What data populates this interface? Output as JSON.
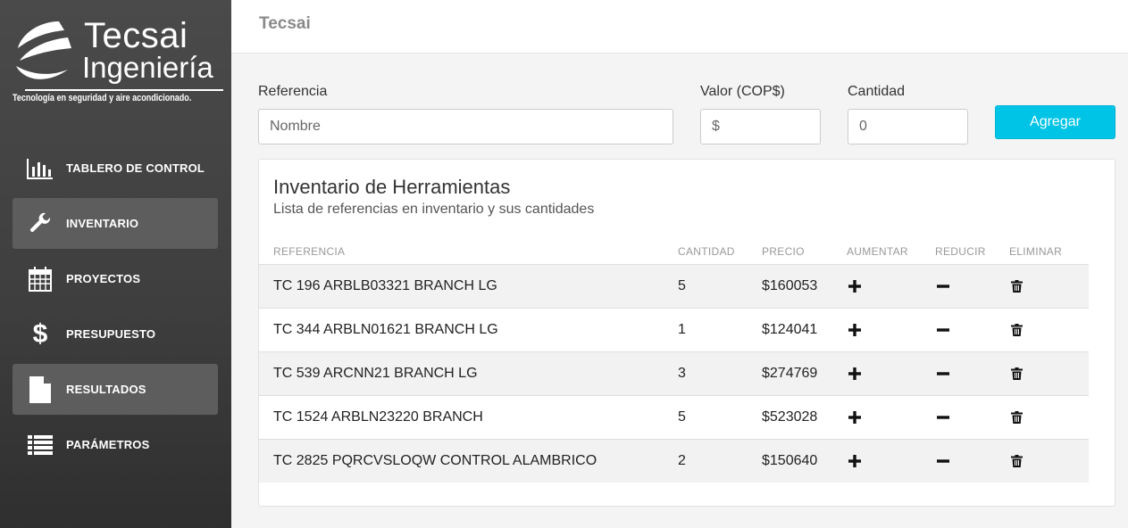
{
  "app": {
    "brand": "Tecsai",
    "logo": {
      "title": "Tecsai",
      "subtitle": "Ingeniería",
      "tagline": "Tecnología en seguridad y aire acondicionado."
    }
  },
  "sidebar": {
    "items": [
      {
        "label": "TABLERO DE CONTROL",
        "icon": "bar-chart-icon",
        "active": false
      },
      {
        "label": "INVENTARIO",
        "icon": "wrench-icon",
        "active": true
      },
      {
        "label": "PROYECTOS",
        "icon": "calendar-icon",
        "active": false
      },
      {
        "label": "PRESUPUESTO",
        "icon": "dollar-icon",
        "active": false
      },
      {
        "label": "RESULTADOS",
        "icon": "file-icon",
        "active": true
      },
      {
        "label": "PARÁMETROS",
        "icon": "list-icon",
        "active": false
      }
    ]
  },
  "form": {
    "reference_label": "Referencia",
    "reference_placeholder": "Nombre",
    "value_label": "Valor (COP$)",
    "value_placeholder": "$",
    "quantity_label": "Cantidad",
    "quantity_placeholder": "0",
    "add_button": "Agregar"
  },
  "inventory": {
    "title": "Inventario de Herramientas",
    "subtitle": "Lista de referencias en inventario y sus cantidades",
    "headers": {
      "reference": "REFERENCIA",
      "quantity": "CANTIDAD",
      "price": "PRECIO",
      "increase": "AUMENTAR",
      "decrease": "REDUCIR",
      "delete": "ELIMINAR"
    },
    "rows": [
      {
        "reference": "TC 196 ARBLB03321 BRANCH LG",
        "quantity": "5",
        "price": "$160053"
      },
      {
        "reference": "TC 344 ARBLN01621 BRANCH LG",
        "quantity": "1",
        "price": "$124041"
      },
      {
        "reference": "TC 539 ARCNN21 BRANCH LG",
        "quantity": "3",
        "price": "$274769"
      },
      {
        "reference": "TC 1524 ARBLN23220 BRANCH",
        "quantity": "5",
        "price": "$523028"
      },
      {
        "reference": "TC 2825 PQRCVSLOQW CONTROL ALAMBRICO",
        "quantity": "2",
        "price": "$150640"
      }
    ]
  },
  "colors": {
    "accent": "#00c4e6",
    "sidebar_bg": "#404040",
    "sidebar_active": "#5d5d5d"
  }
}
